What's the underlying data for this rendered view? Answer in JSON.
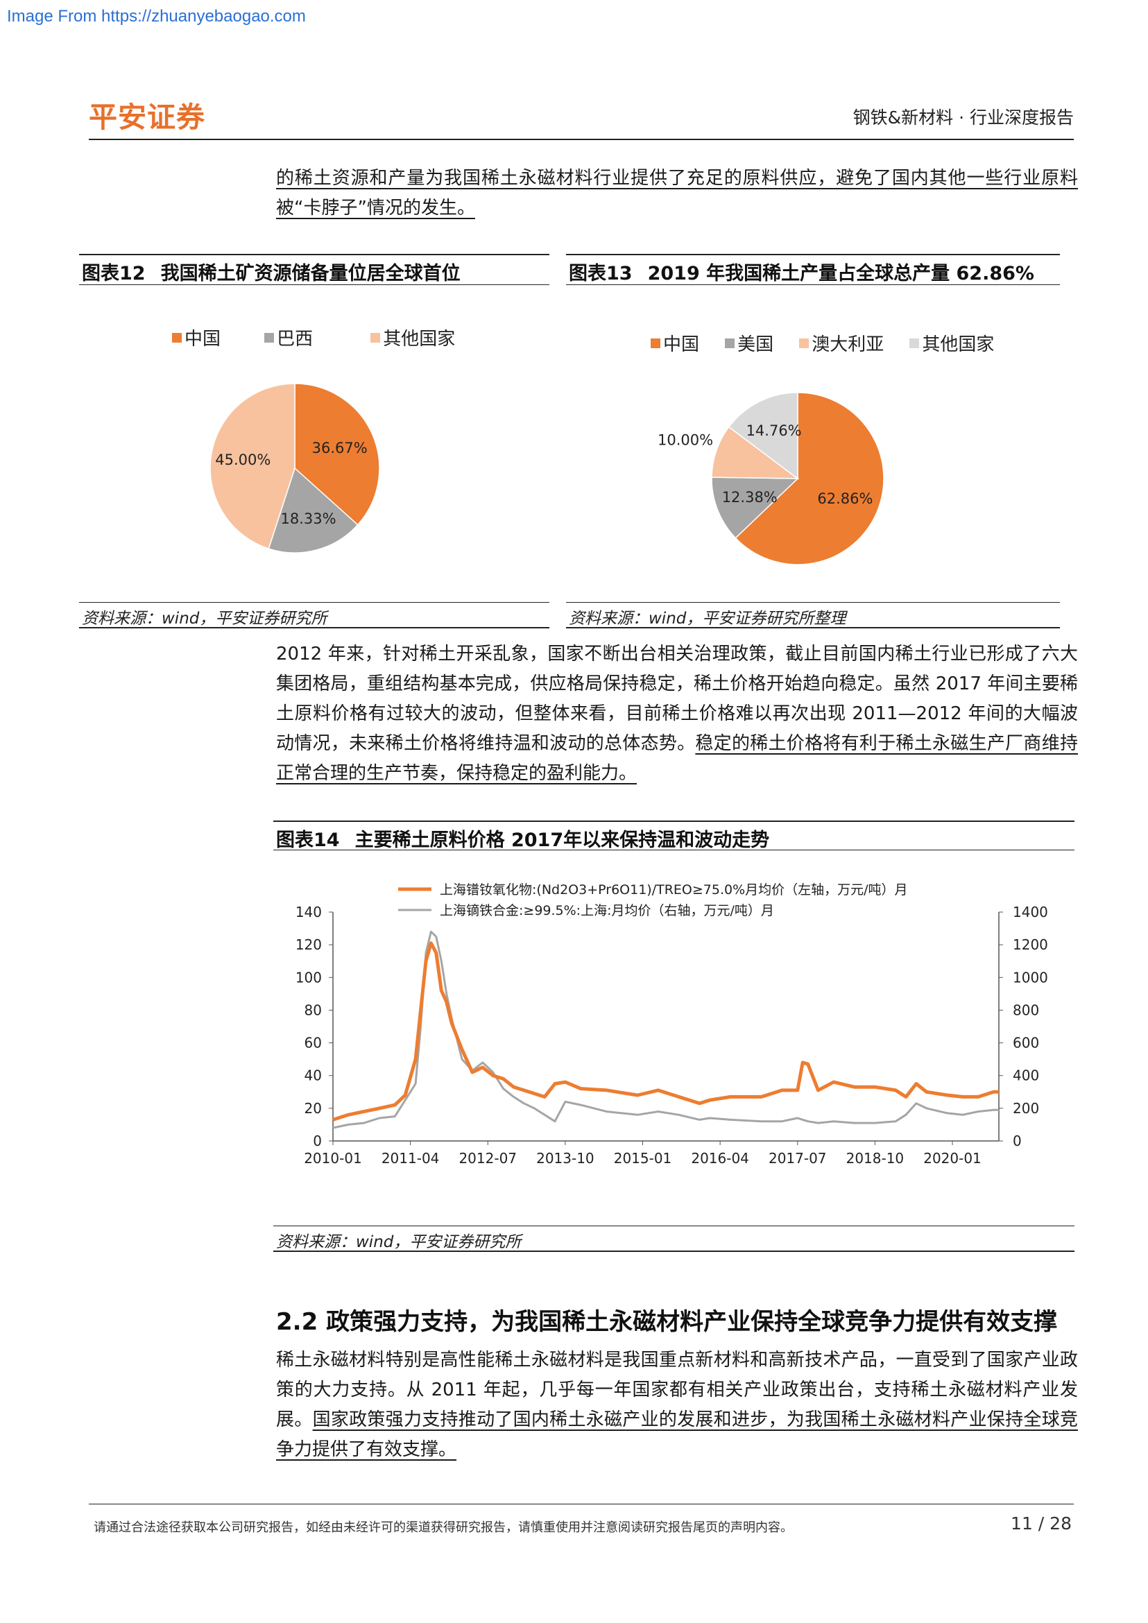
{
  "page": {
    "source_url": "Image From https://zhuanyebaogao.com",
    "logo": "平安证券",
    "header_tag": "钢铁&新材料 · 行业深度报告",
    "footer_note": "请通过合法途径获取本公司研究报告，如经由未经许可的渠道获得研究报告，请慎重使用并注意阅读研究报告尾页的声明内容。",
    "page_number": "11 / 28"
  },
  "paragraphs": {
    "p1": "的稀土资源和产量为我国稀土永磁材料行业提供了充足的原料供应，避免了国内其他一些行业原料被“卡脖子”情况的发生。",
    "p2_plain": "2012 年来，针对稀土开采乱象，国家不断出台相关治理政策，截止目前国内稀土行业已形成了六大集团格局，重组结构基本完成，供应格局保持稳定，稀土价格开始趋向稳定。虽然 2017 年间主要稀土原料价格有过较大的波动，但整体来看，目前稀土价格难以再次出现  2011—2012 年间的大幅波动情况，未来稀土价格将维持温和波动的总体态势。",
    "p2_underlined": "稳定的稀土价格将有利于稀土永磁生产厂商维持正常合理的生产节奏，保持稳定的盈利能力。",
    "section_heading": "2.2 政策强力支持，为我国稀土永磁材料产业保持全球竞争力提供有效支撑",
    "p3_plain": "稀土永磁材料特别是高性能稀土永磁材料是我国重点新材料和高新技术产品，一直受到了国家产业政策的大力支持。从 2011 年起，几乎每一年国家都有相关产业政策出台，支持稀土永磁材料产业发展。",
    "p3_underlined": "国家政策强力支持推动了国内稀土永磁产业的发展和进步，为我国稀土永磁材料产业保持全球竞争力提供了有效支撑。"
  },
  "figures": {
    "fig12": {
      "number": "图表12",
      "title": "我国稀土矿资源储备量位居全球首位",
      "source": "资料来源：wind，平安证券研究所"
    },
    "fig13": {
      "number": "图表13",
      "title": "2019 年我国稀土产量占全球总产量 62.86%",
      "source": "资料来源：wind，平安证券研究所整理"
    },
    "fig14": {
      "number": "图表14",
      "title": "主要稀土原料价格 2017年以来保持温和波动走势",
      "source": "资料来源：wind，平安证券研究所"
    }
  },
  "colors": {
    "orange": "#ed7d31",
    "gray": "#a5a5a5",
    "peach": "#f8c29f",
    "lightgray": "#d9d9d9",
    "logo": "#e8702a",
    "link": "#2a6fd6"
  },
  "chart_data": [
    {
      "type": "pie",
      "labels": [
        "中国",
        "巴西",
        "其他国家"
      ],
      "values": [
        36.67,
        18.33,
        45.0
      ],
      "value_labels": [
        "36.67%",
        "18.33%",
        "45.00%"
      ],
      "colors": [
        "#ed7d31",
        "#a5a5a5",
        "#f8c29f"
      ],
      "legend": "top"
    },
    {
      "type": "pie",
      "labels": [
        "中国",
        "美国",
        "澳大利亚",
        "其他国家"
      ],
      "values": [
        62.86,
        12.38,
        10.0,
        14.76
      ],
      "value_labels": [
        "62.86%",
        "12.38%",
        "10.00%",
        "14.76%"
      ],
      "colors": [
        "#ed7d31",
        "#a5a5a5",
        "#f8c29f",
        "#d9d9d9"
      ],
      "legend": "top"
    },
    {
      "type": "line",
      "x_ticks": [
        "2010-01",
        "2011-04",
        "2012-07",
        "2013-10",
        "2015-01",
        "2016-04",
        "2017-07",
        "2018-10",
        "2020-01"
      ],
      "x_range": [
        "2010-01",
        "2020-10"
      ],
      "y_left": {
        "ticks": [
          "0",
          "20",
          "40",
          "60",
          "80",
          "100",
          "120",
          "140"
        ],
        "lim": [
          0,
          140
        ]
      },
      "y_right": {
        "ticks": [
          "0",
          "200",
          "400",
          "600",
          "800",
          "1000",
          "1200",
          "1400"
        ],
        "lim": [
          0,
          1400
        ]
      },
      "legend": "top-center",
      "series": [
        {
          "name": "上海镨钕氧化物:(Nd2O3+Pr6O11)/TREO≥75.0%月均价（左轴，万元/吨）月",
          "axis": "left",
          "color": "#ed7d31",
          "points": [
            [
              "2010-01",
              13
            ],
            [
              "2010-04",
              16
            ],
            [
              "2010-07",
              18
            ],
            [
              "2010-10",
              20
            ],
            [
              "2011-01",
              22
            ],
            [
              "2011-03",
              28
            ],
            [
              "2011-05",
              50
            ],
            [
              "2011-06",
              80
            ],
            [
              "2011-07",
              110
            ],
            [
              "2011-08",
              121
            ],
            [
              "2011-09",
              115
            ],
            [
              "2011-10",
              92
            ],
            [
              "2011-11",
              85
            ],
            [
              "2011-12",
              72
            ],
            [
              "2012-02",
              56
            ],
            [
              "2012-04",
              42
            ],
            [
              "2012-06",
              45
            ],
            [
              "2012-08",
              40
            ],
            [
              "2012-10",
              38
            ],
            [
              "2012-12",
              33
            ],
            [
              "2013-02",
              31
            ],
            [
              "2013-04",
              29
            ],
            [
              "2013-06",
              27
            ],
            [
              "2013-08",
              35
            ],
            [
              "2013-10",
              36
            ],
            [
              "2014-01",
              32
            ],
            [
              "2014-06",
              31
            ],
            [
              "2014-12",
              28
            ],
            [
              "2015-04",
              31
            ],
            [
              "2015-08",
              27
            ],
            [
              "2015-12",
              23
            ],
            [
              "2016-02",
              25
            ],
            [
              "2016-06",
              27
            ],
            [
              "2016-12",
              27
            ],
            [
              "2017-04",
              31
            ],
            [
              "2017-07",
              31
            ],
            [
              "2017-08",
              48
            ],
            [
              "2017-09",
              47
            ],
            [
              "2017-11",
              31
            ],
            [
              "2018-02",
              36
            ],
            [
              "2018-06",
              33
            ],
            [
              "2018-10",
              33
            ],
            [
              "2019-02",
              31
            ],
            [
              "2019-04",
              27
            ],
            [
              "2019-06",
              35
            ],
            [
              "2019-08",
              30
            ],
            [
              "2019-12",
              28
            ],
            [
              "2020-03",
              27
            ],
            [
              "2020-06",
              27
            ],
            [
              "2020-09",
              30
            ],
            [
              "2020-10",
              30
            ]
          ]
        },
        {
          "name": "上海镝铁合金:≥99.5%:上海:月均价（右轴，万元/吨）月",
          "axis": "right",
          "color": "#a5a5a5",
          "points": [
            [
              "2010-01",
              80
            ],
            [
              "2010-04",
              100
            ],
            [
              "2010-07",
              110
            ],
            [
              "2010-10",
              140
            ],
            [
              "2011-01",
              150
            ],
            [
              "2011-03",
              250
            ],
            [
              "2011-05",
              350
            ],
            [
              "2011-06",
              700
            ],
            [
              "2011-07",
              1150
            ],
            [
              "2011-08",
              1280
            ],
            [
              "2011-09",
              1250
            ],
            [
              "2011-10",
              1100
            ],
            [
              "2011-11",
              900
            ],
            [
              "2011-12",
              750
            ],
            [
              "2012-02",
              500
            ],
            [
              "2012-04",
              430
            ],
            [
              "2012-06",
              480
            ],
            [
              "2012-08",
              420
            ],
            [
              "2012-10",
              320
            ],
            [
              "2012-12",
              270
            ],
            [
              "2013-02",
              230
            ],
            [
              "2013-04",
              200
            ],
            [
              "2013-06",
              160
            ],
            [
              "2013-08",
              120
            ],
            [
              "2013-10",
              240
            ],
            [
              "2014-01",
              220
            ],
            [
              "2014-06",
              180
            ],
            [
              "2014-12",
              160
            ],
            [
              "2015-04",
              180
            ],
            [
              "2015-08",
              160
            ],
            [
              "2015-12",
              130
            ],
            [
              "2016-02",
              140
            ],
            [
              "2016-06",
              130
            ],
            [
              "2016-12",
              120
            ],
            [
              "2017-04",
              120
            ],
            [
              "2017-07",
              140
            ],
            [
              "2017-08",
              130
            ],
            [
              "2017-09",
              120
            ],
            [
              "2017-11",
              110
            ],
            [
              "2018-02",
              120
            ],
            [
              "2018-06",
              110
            ],
            [
              "2018-10",
              110
            ],
            [
              "2019-02",
              120
            ],
            [
              "2019-04",
              160
            ],
            [
              "2019-06",
              230
            ],
            [
              "2019-08",
              200
            ],
            [
              "2019-12",
              170
            ],
            [
              "2020-03",
              160
            ],
            [
              "2020-06",
              180
            ],
            [
              "2020-09",
              190
            ],
            [
              "2020-10",
              190
            ]
          ]
        }
      ]
    }
  ]
}
